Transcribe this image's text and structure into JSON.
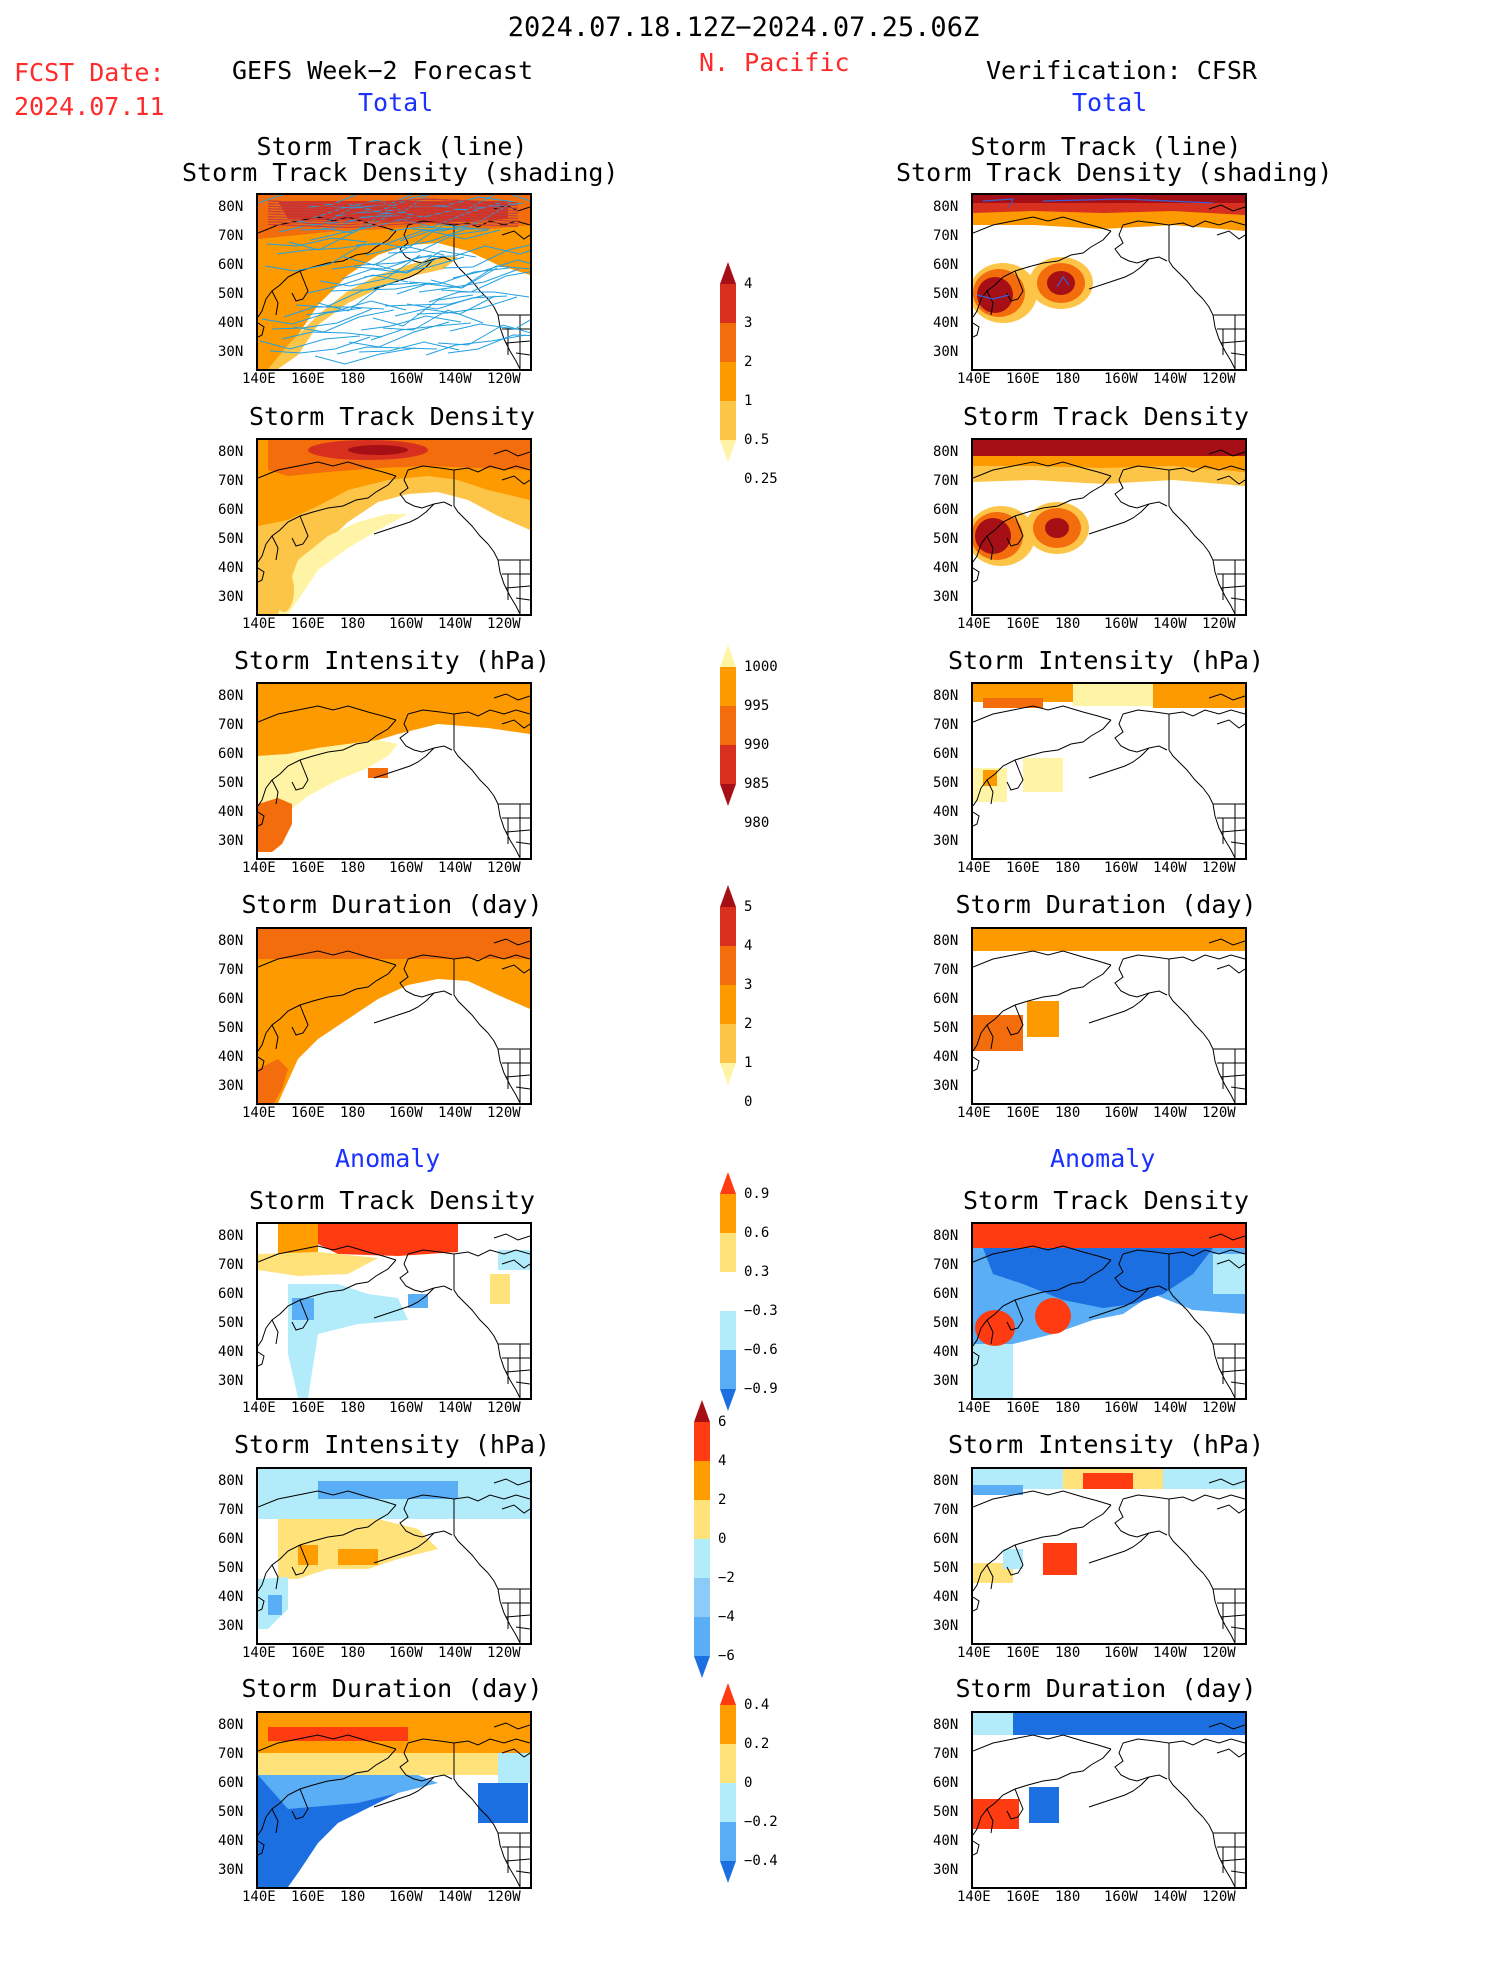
{
  "header": {
    "period": "2024.07.18.12Z−2024.07.25.06Z",
    "region": "N. Pacific",
    "fcst_label": "FCST Date:",
    "fcst_date": "2024.07.11",
    "left_title": "GEFS Week−2 Forecast",
    "right_title": "Verification: CFSR",
    "total_label": "Total",
    "anomaly_label": "Anomaly"
  },
  "panel_titles": {
    "track_1": "Storm Track (line)",
    "track_2": "Storm Track Density (shading)",
    "density": "Storm Track Density",
    "intensity": "Storm Intensity (hPa)",
    "duration": "Storm Duration (day)"
  },
  "axes": {
    "lon_ticks": [
      "140E",
      "160E",
      "180",
      "160W",
      "140W",
      "120W"
    ],
    "lat_ticks": [
      "80N",
      "70N",
      "60N",
      "50N",
      "40N",
      "30N"
    ]
  },
  "colorbars": {
    "density": {
      "labels": [
        "4",
        "3",
        "2",
        "1",
        "0.5",
        "0.25"
      ],
      "colors": [
        "#a50f15",
        "#d7301f",
        "#f46d0c",
        "#fd9a00",
        "#fdc548",
        "#fff4a5"
      ]
    },
    "intensity": {
      "labels": [
        "1000",
        "995",
        "990",
        "985",
        "980"
      ],
      "colors": [
        "#fff4a5",
        "#fd9a00",
        "#f46d0c",
        "#d7301f",
        "#a50f15"
      ]
    },
    "duration": {
      "labels": [
        "5",
        "4",
        "3",
        "2",
        "1",
        "0"
      ],
      "colors": [
        "#a50f15",
        "#d7301f",
        "#f46d0c",
        "#fd9a00",
        "#fdc548",
        "#fff4a5"
      ]
    },
    "density_anom": {
      "labels": [
        "0.9",
        "0.6",
        "0.3",
        "−0.3",
        "−0.6",
        "−0.9"
      ],
      "colors": [
        "#ff3b12",
        "#ff9d00",
        "#ffe27a",
        "#ffffff",
        "#b2ecfa",
        "#5aaef5",
        "#1c6fe0"
      ]
    },
    "intensity_anom": {
      "labels": [
        "6",
        "4",
        "2",
        "0",
        "−2",
        "−4",
        "−6"
      ],
      "colors": [
        "#a50f15",
        "#ff3b12",
        "#ff9d00",
        "#ffe27a",
        "#b2ecfa",
        "#8ccaf7",
        "#5aaef5",
        "#1c6fe0"
      ]
    },
    "duration_anom": {
      "labels": [
        "0.4",
        "0.2",
        "0",
        "−0.2",
        "−0.4"
      ],
      "colors": [
        "#ff3b12",
        "#ff9d00",
        "#ffe27a",
        "#b2ecfa",
        "#5aaef5",
        "#1c6fe0"
      ]
    }
  },
  "colors": {
    "track_line": "#22a0e0",
    "track_line_cfsr": "#3a5fd0",
    "coast": "#000000"
  }
}
